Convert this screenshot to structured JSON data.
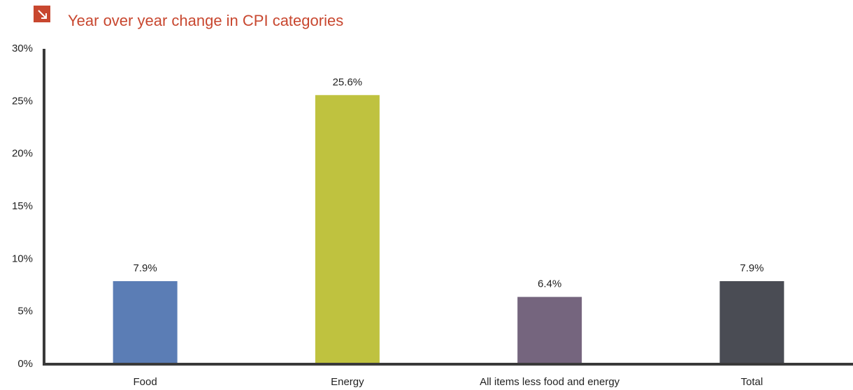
{
  "chart_data": {
    "type": "bar",
    "title": "Year over year change in CPI categories",
    "categories": [
      "Food",
      "Energy",
      "All items less food and energy",
      "Total"
    ],
    "values": [
      7.9,
      25.6,
      6.4,
      7.9
    ],
    "value_labels": [
      "7.9%",
      "25.6%",
      "6.4%",
      "7.9%"
    ],
    "colors": [
      "#5b7db5",
      "#bfc23f",
      "#75657e",
      "#4a4c54"
    ],
    "ylim": [
      0,
      30
    ],
    "yticks": [
      {
        "value": 0,
        "label": "0%"
      },
      {
        "value": 5,
        "label": "5%"
      },
      {
        "value": 10,
        "label": "10%"
      },
      {
        "value": 15,
        "label": "15%"
      },
      {
        "value": 20,
        "label": "20%"
      },
      {
        "value": 25,
        "label": "25%"
      },
      {
        "value": 30,
        "label": "30%"
      }
    ],
    "grid": false
  }
}
